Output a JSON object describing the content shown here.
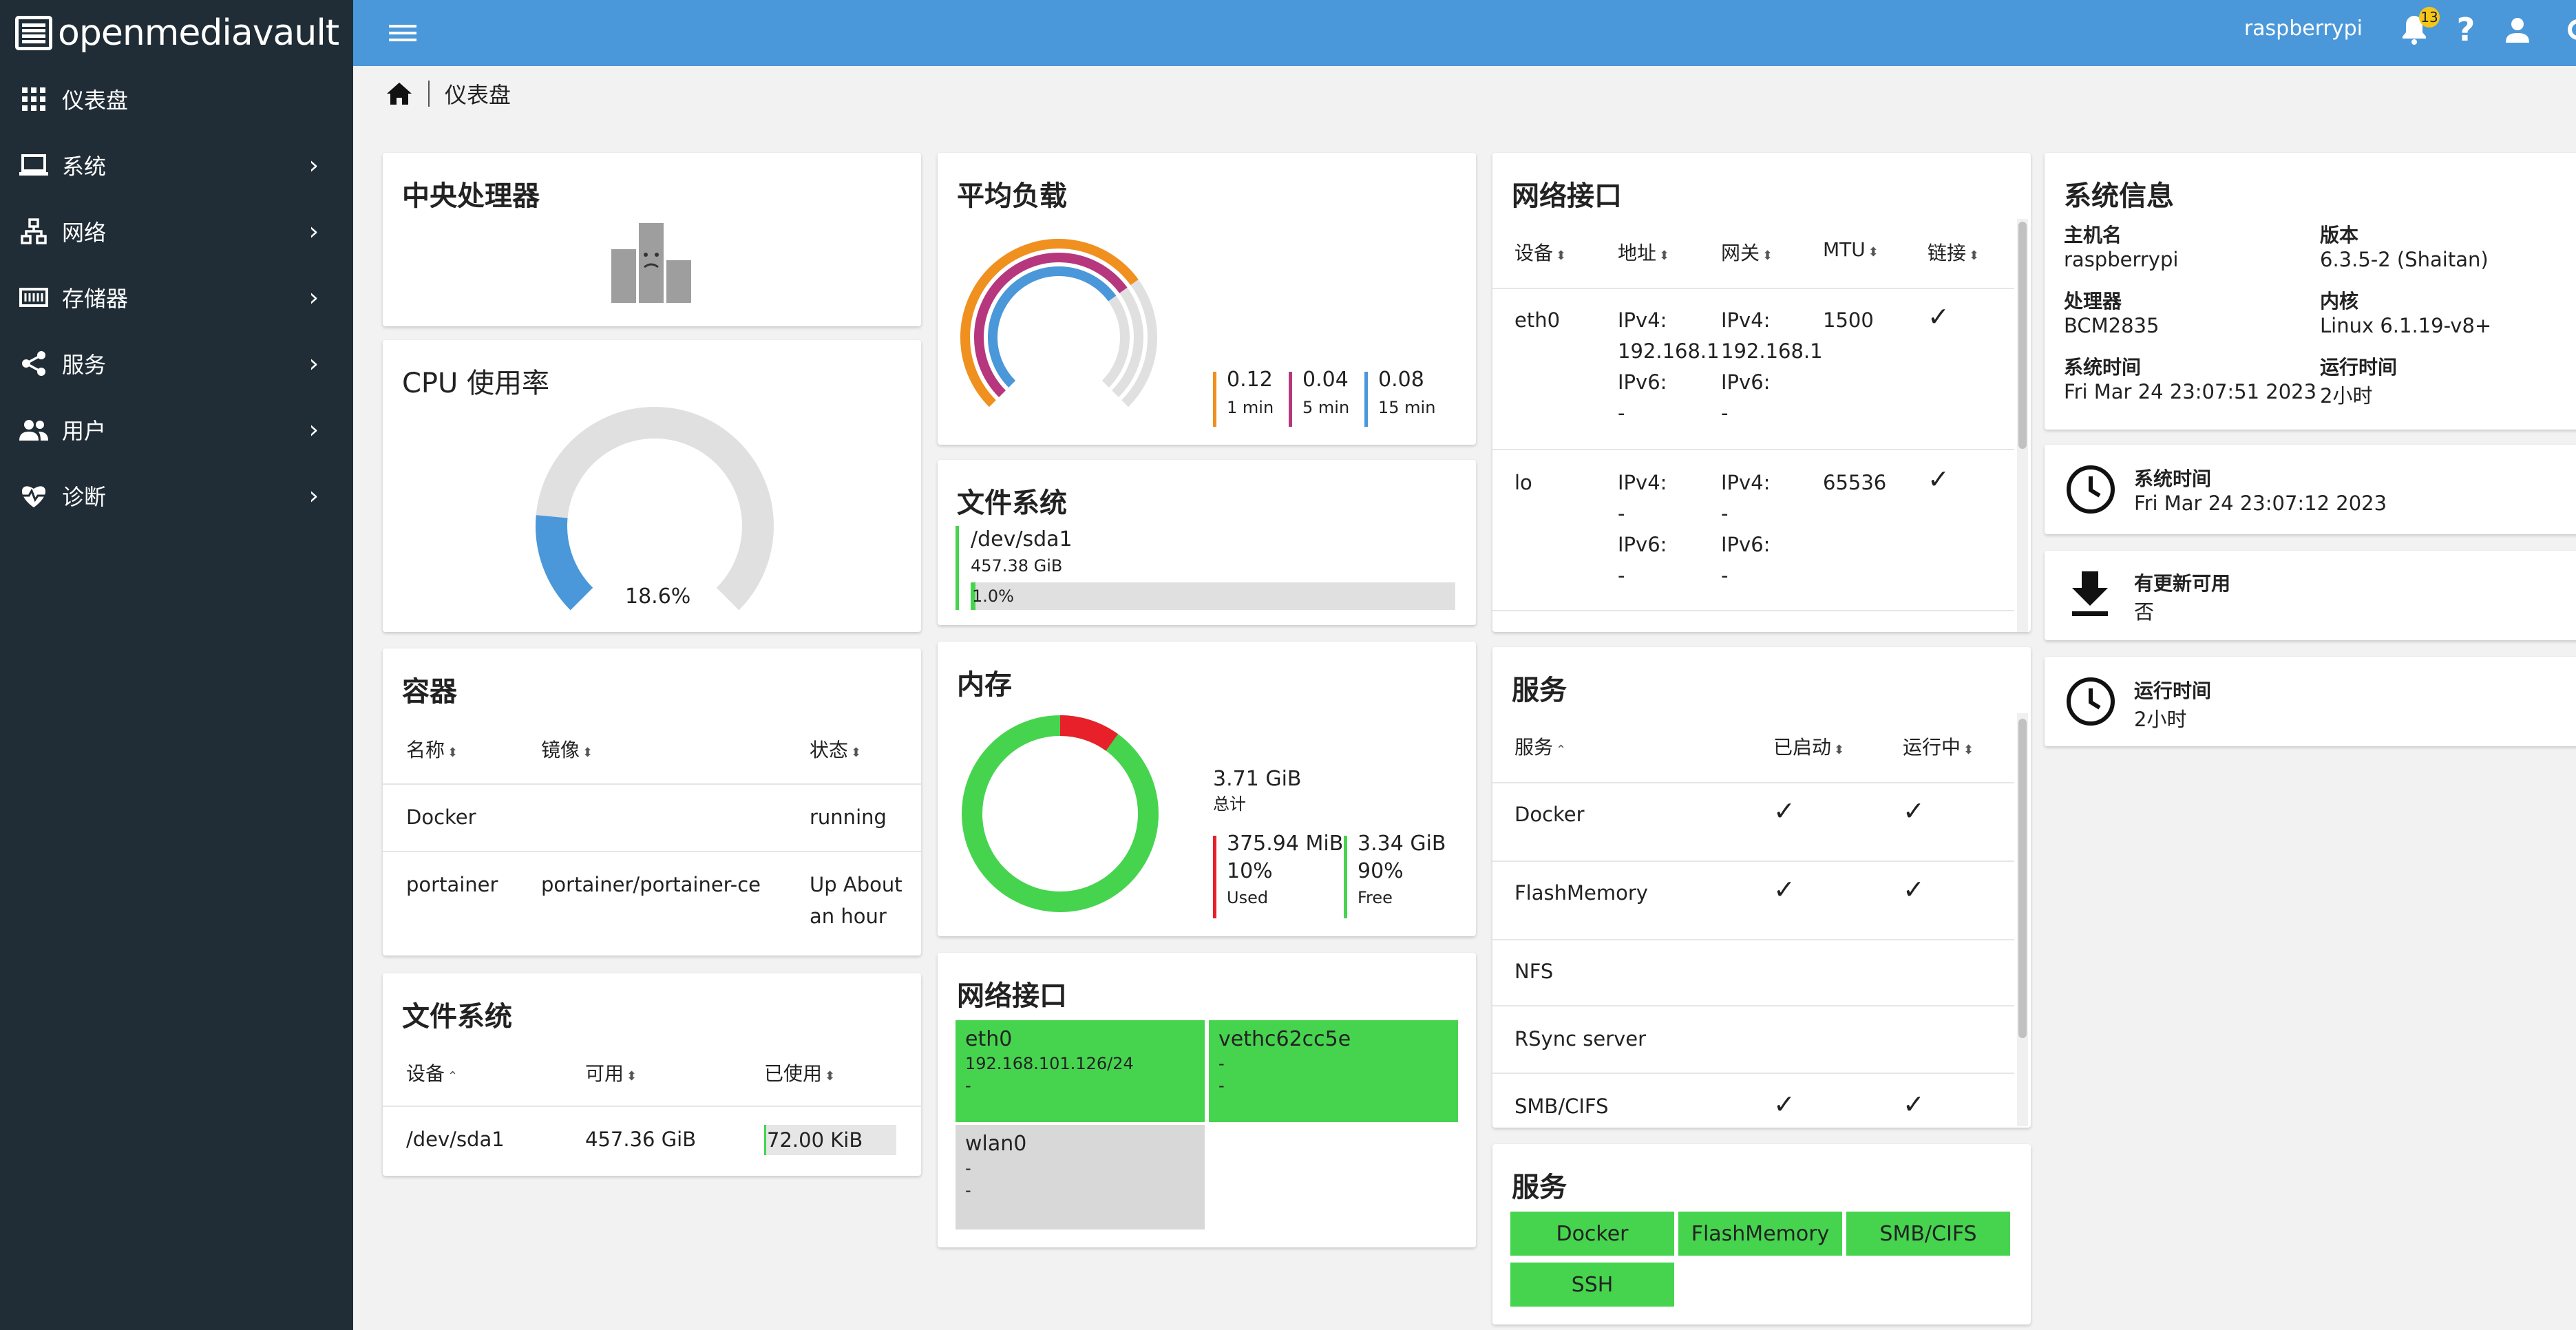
{
  "app": {
    "logo_text": "openmediavault"
  },
  "sidebar": {
    "items": [
      {
        "label": "仪表盘",
        "icon": "dashboard-grid-icon"
      },
      {
        "label": "系统",
        "icon": "laptop-icon"
      },
      {
        "label": "网络",
        "icon": "network-icon"
      },
      {
        "label": "存储器",
        "icon": "storage-icon"
      },
      {
        "label": "服务",
        "icon": "share-icon"
      },
      {
        "label": "用户",
        "icon": "users-icon"
      },
      {
        "label": "诊断",
        "icon": "heartbeat-icon"
      }
    ]
  },
  "header": {
    "hostname": "raspberrypi",
    "notification_count": "13"
  },
  "breadcrumb": {
    "current": "仪表盘"
  },
  "cpu": {
    "title": "中央处理器"
  },
  "cpu_usage": {
    "title": "CPU 使用率",
    "value_label": "18.6%",
    "value": 18.6
  },
  "containers": {
    "title": "容器",
    "headers": [
      "名称",
      "镜像",
      "状态"
    ],
    "rows": [
      {
        "name": "Docker",
        "image": "",
        "status": "running"
      },
      {
        "name": "portainer",
        "image": "portainer/portainer-ce",
        "status_l1": "Up About",
        "status_l2": "an hour"
      }
    ]
  },
  "filesystem_table": {
    "title": "文件系统",
    "headers": [
      "设备",
      "可用",
      "已使用"
    ],
    "rows": [
      {
        "device": "/dev/sda1",
        "available": "457.36 GiB",
        "used": "72.00 KiB"
      }
    ]
  },
  "load": {
    "title": "平均负载",
    "items": [
      {
        "value": "0.12",
        "label": "1 min",
        "color": "#f0901e"
      },
      {
        "value": "0.04",
        "label": "5 min",
        "color": "#b6377d"
      },
      {
        "value": "0.08",
        "label": "15 min",
        "color": "#4a98d9"
      }
    ]
  },
  "filesystem": {
    "title": "文件系统",
    "device": "/dev/sda1",
    "size": "457.38 GiB",
    "percent_label": "1.0%",
    "percent": 1.0
  },
  "memory": {
    "title": "内存",
    "total": "3.71 GiB",
    "total_label": "总计",
    "used": "375.94 MiB",
    "used_pct": "10%",
    "used_label": "Used",
    "used_value": 10,
    "free": "3.34 GiB",
    "free_pct": "90%",
    "free_label": "Free",
    "used_color": "#e8202a",
    "free_color": "#46d44f"
  },
  "net_tiles": {
    "title": "网络接口",
    "tiles": [
      {
        "name": "eth0",
        "l1": "192.168.101.126/24",
        "l2": "-"
      },
      {
        "name": "vethc62cc5e",
        "l1": "-",
        "l2": "-"
      },
      {
        "name": "wlan0",
        "l1": "-",
        "l2": "-"
      }
    ]
  },
  "net_table": {
    "title": "网络接口",
    "headers": [
      "设备",
      "地址",
      "网关",
      "MTU",
      "链接"
    ],
    "rows": [
      {
        "device": "eth0",
        "addr": [
          "IPv4:",
          "192.168.1",
          "IPv6:",
          "-"
        ],
        "gw": [
          "IPv4:",
          "192.168.1",
          "IPv6:",
          "-"
        ],
        "mtu": "1500"
      },
      {
        "device": "lo",
        "addr": [
          "IPv4:",
          "-",
          "IPv6:",
          "-"
        ],
        "gw": [
          "IPv4:",
          "-",
          "IPv6:",
          "-"
        ],
        "mtu": "65536"
      }
    ]
  },
  "services_table": {
    "title": "服务",
    "headers": [
      "服务",
      "已启动",
      "运行中"
    ],
    "rows": [
      "Docker",
      "FlashMemory",
      "NFS",
      "RSync server",
      "SMB/CIFS"
    ]
  },
  "services_chips": {
    "title": "服务",
    "chips": [
      "Docker",
      "FlashMemory",
      "SMB/CIFS",
      "SSH"
    ]
  },
  "sysinfo": {
    "title": "系统信息",
    "hostname_k": "主机名",
    "hostname_v": "raspberrypi",
    "version_k": "版本",
    "version_v": "6.3.5-2 (Shaitan)",
    "cpu_k": "处理器",
    "cpu_v": "BCM2835",
    "kernel_k": "内核",
    "kernel_v": "Linux 6.1.19-v8+",
    "time_k": "系统时间",
    "time_v": "Fri Mar 24 23:07:51 2023",
    "uptime_k": "运行时间",
    "uptime_v": "2小时"
  },
  "widgets": {
    "systime_k": "系统时间",
    "systime_v": "Fri Mar 24 23:07:12 2023",
    "update_k": "有更新可用",
    "update_v": "否",
    "uptime_k": "运行时间",
    "uptime_v": "2小时"
  }
}
